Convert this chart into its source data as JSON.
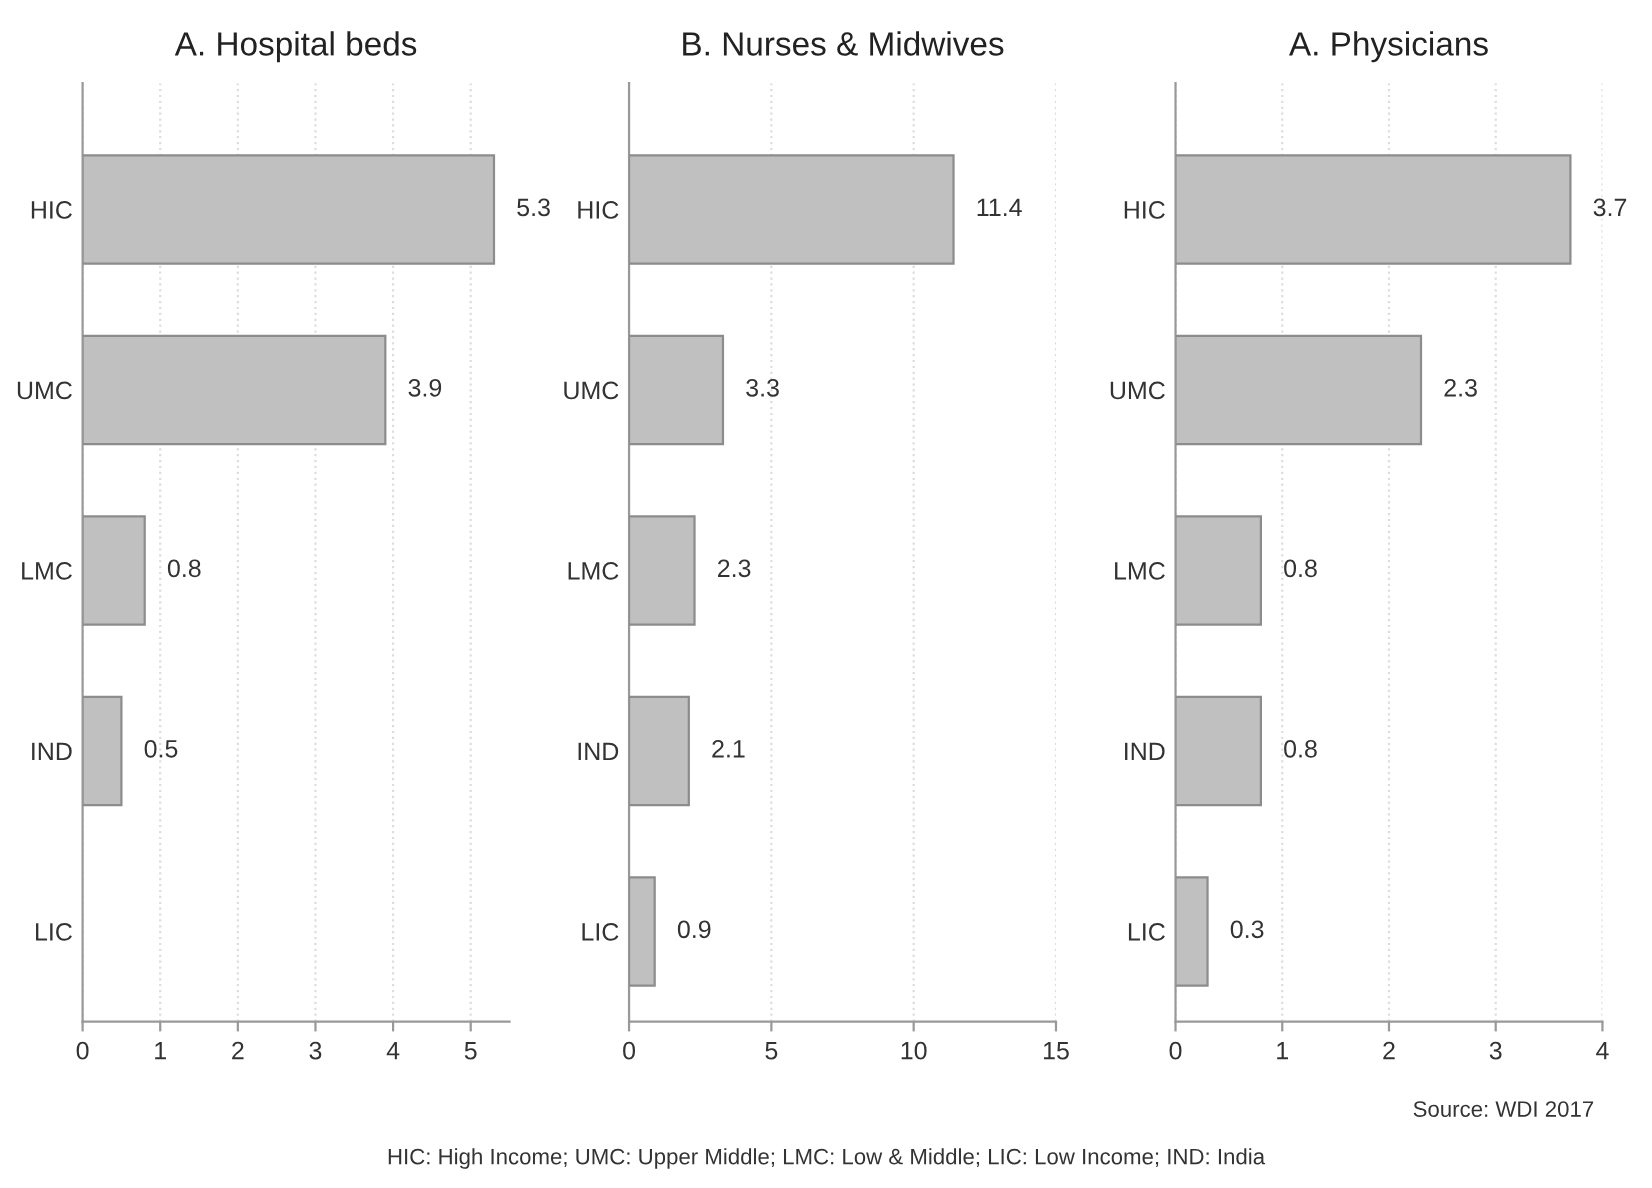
{
  "chart_data": [
    {
      "type": "bar",
      "orientation": "horizontal",
      "title": "A. Hospital beds",
      "categories": [
        "HIC",
        "UMC",
        "LMC",
        "IND",
        "LIC"
      ],
      "values": [
        5.3,
        3.9,
        0.8,
        0.5,
        null
      ],
      "color": "#c0c0c0",
      "xlim": [
        0,
        5.5
      ],
      "xticks": [
        0,
        1,
        2,
        3,
        4,
        5
      ],
      "grid": "x",
      "data_labels": true
    },
    {
      "type": "bar",
      "orientation": "horizontal",
      "title": "B. Nurses & Midwives",
      "categories": [
        "HIC",
        "UMC",
        "LMC",
        "IND",
        "LIC"
      ],
      "values": [
        11.4,
        3.3,
        2.3,
        2.1,
        0.9
      ],
      "color": "#c0c0c0",
      "xlim": [
        0,
        15
      ],
      "xticks": [
        0,
        5,
        10,
        15
      ],
      "grid": "x",
      "data_labels": true
    },
    {
      "type": "bar",
      "orientation": "horizontal",
      "title": "A. Physicians",
      "categories": [
        "HIC",
        "UMC",
        "LMC",
        "IND",
        "LIC"
      ],
      "values": [
        3.7,
        2.3,
        0.8,
        0.8,
        0.3
      ],
      "color": "#c0c0c0",
      "xlim": [
        0,
        4
      ],
      "xticks": [
        0,
        1,
        2,
        3,
        4
      ],
      "grid": "x",
      "data_labels": true,
      "annotations": [
        "Source: WDI 2017",
        "HIC: High Income; UMC: Upper Middle; LMC: Low & Middle; LIC: Low Income; IND: India"
      ]
    }
  ]
}
